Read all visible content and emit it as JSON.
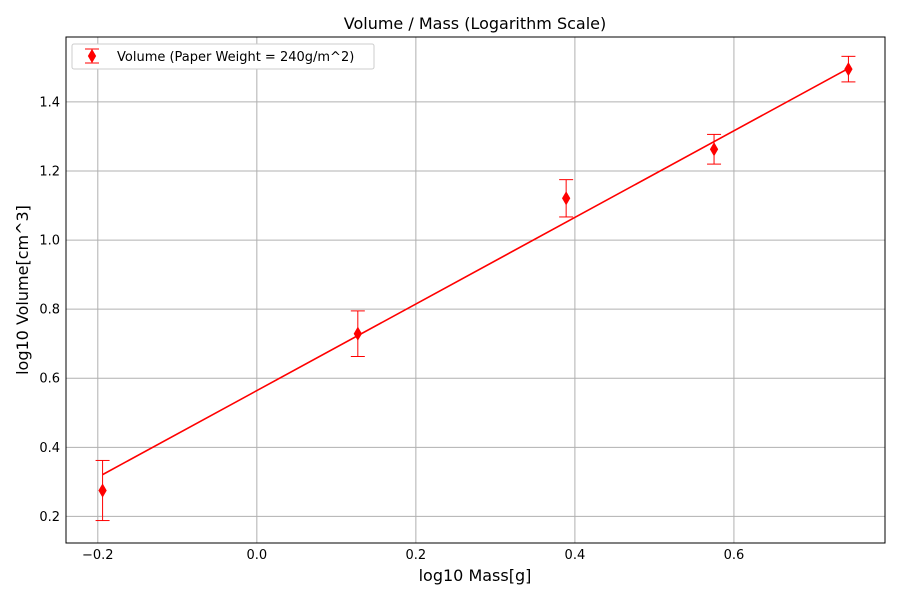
{
  "chart_data": {
    "type": "scatter",
    "title": "Volume / Mass (Logarithm Scale)",
    "xlabel": "log10 Mass[g]",
    "ylabel": "log10 Volume[cm^3]",
    "xlim": [
      -0.24,
      0.79
    ],
    "ylim": [
      0.123,
      1.588
    ],
    "x_ticks": [
      -0.2,
      0.0,
      0.2,
      0.4,
      0.6
    ],
    "x_tick_labels": [
      "−0.2",
      "0.0",
      "0.2",
      "0.4",
      "0.6"
    ],
    "y_ticks": [
      0.2,
      0.4,
      0.6,
      0.8,
      1.0,
      1.2,
      1.4
    ],
    "y_tick_labels": [
      "0.2",
      "0.4",
      "0.6",
      "0.8",
      "1.0",
      "1.2",
      "1.4"
    ],
    "grid": true,
    "legend_position": "top-left",
    "series": [
      {
        "name": "Volume (Paper Weight = 240g/m^2)",
        "color": "#ff0000",
        "marker": "thin-diamond",
        "x": [
          -0.194,
          0.127,
          0.389,
          0.575,
          0.744
        ],
        "y": [
          0.275,
          0.729,
          1.121,
          1.263,
          1.495
        ],
        "yerr": [
          0.087,
          0.066,
          0.054,
          0.043,
          0.037
        ]
      }
    ],
    "fit_line": {
      "color": "#ff0000",
      "x": [
        -0.194,
        0.744
      ],
      "y": [
        0.321,
        1.497
      ]
    }
  }
}
